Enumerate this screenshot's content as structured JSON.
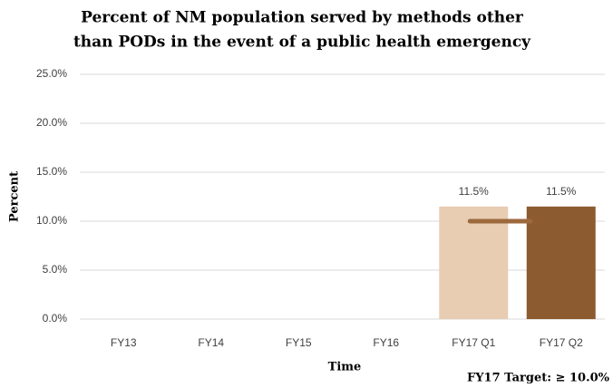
{
  "chart_data": {
    "type": "bar",
    "title": [
      "Percent of NM population served by methods other",
      "than PODs in the event of a public health emergency"
    ],
    "categories": [
      "FY13",
      "FY14",
      "FY15",
      "FY16",
      "FY17 Q1",
      "FY17 Q2"
    ],
    "values": [
      null,
      null,
      null,
      null,
      11.5,
      11.5
    ],
    "value_labels": [
      null,
      null,
      null,
      null,
      "11.5%",
      "11.5%"
    ],
    "colors": [
      "#e8cdb2",
      "#e8cdb2",
      "#e8cdb2",
      "#e8cdb2",
      "#e8cdb2",
      "#8c5b2f"
    ],
    "ylim": [
      0,
      25
    ],
    "yticks": [
      {
        "value": 0,
        "label": "0.0%"
      },
      {
        "value": 5,
        "label": "5.0%"
      },
      {
        "value": 10,
        "label": "10.0%"
      },
      {
        "value": 15,
        "label": "15.0%"
      },
      {
        "value": 20,
        "label": "20.0%"
      },
      {
        "value": 25,
        "label": "25.0%"
      }
    ],
    "grid": true,
    "ylabel": "Percent",
    "xlabel": "Time",
    "target": {
      "value": 10,
      "label": "FY17 Target: ≥ 10.0%",
      "color": "#9c6a3c"
    }
  }
}
